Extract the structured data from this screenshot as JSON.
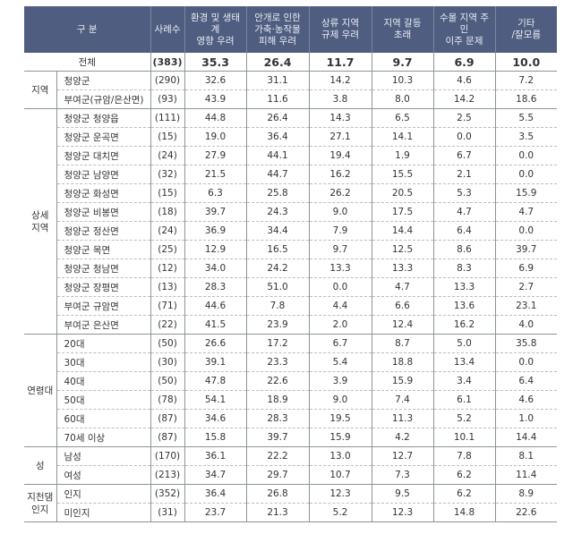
{
  "table": {
    "headers": [
      "구      분",
      "사례수",
      "환경 및 생태계\n영향 우려",
      "안개로 인한\n가축·농작물\n피해 우려",
      "상류 지역\n규제 우려",
      "지역 갈등\n초래",
      "수몰 지역 주민\n이주 문제",
      "기타\n/잘모름"
    ],
    "total": {
      "label": "전체",
      "n": "(383)",
      "values": [
        "35.3",
        "26.4",
        "11.7",
        "9.7",
        "6.9",
        "10.0"
      ]
    },
    "groups": [
      {
        "label": "지역",
        "rows": [
          {
            "label": "청양군",
            "n": "(290)",
            "values": [
              "32.6",
              "31.1",
              "14.2",
              "10.3",
              "4.6",
              "7.2"
            ]
          },
          {
            "label": "부여군(규암/은산면)",
            "n": "(93)",
            "values": [
              "43.9",
              "11.6",
              "3.8",
              "8.0",
              "14.2",
              "18.6"
            ]
          }
        ]
      },
      {
        "label": "상세\n지역",
        "rows": [
          {
            "label": "청양군 청양읍",
            "n": "(111)",
            "values": [
              "44.8",
              "26.4",
              "14.3",
              "6.5",
              "2.5",
              "5.5"
            ]
          },
          {
            "label": "청양군 운곡면",
            "n": "(15)",
            "values": [
              "19.0",
              "36.4",
              "27.1",
              "14.1",
              "0.0",
              "3.5"
            ]
          },
          {
            "label": "청양군 대치면",
            "n": "(24)",
            "values": [
              "27.9",
              "44.1",
              "19.4",
              "1.9",
              "6.7",
              "0.0"
            ]
          },
          {
            "label": "청양군 남양면",
            "n": "(32)",
            "values": [
              "21.5",
              "44.7",
              "16.2",
              "15.5",
              "2.1",
              "0.0"
            ]
          },
          {
            "label": "청양군 화성면",
            "n": "(15)",
            "values": [
              "6.3",
              "25.8",
              "26.2",
              "20.5",
              "5.3",
              "15.9"
            ]
          },
          {
            "label": "청양군 비봉면",
            "n": "(18)",
            "values": [
              "39.7",
              "24.3",
              "9.0",
              "17.5",
              "4.7",
              "4.7"
            ]
          },
          {
            "label": "청양군 정산면",
            "n": "(24)",
            "values": [
              "36.9",
              "34.4",
              "7.9",
              "14.4",
              "6.4",
              "0.0"
            ]
          },
          {
            "label": "청양군 목면",
            "n": "(25)",
            "values": [
              "12.9",
              "16.5",
              "9.7",
              "12.5",
              "8.6",
              "39.7"
            ]
          },
          {
            "label": "청양군 청남면",
            "n": "(12)",
            "values": [
              "34.0",
              "24.2",
              "13.3",
              "13.3",
              "8.3",
              "6.9"
            ]
          },
          {
            "label": "청양군 장평면",
            "n": "(13)",
            "values": [
              "28.3",
              "51.0",
              "0.0",
              "4.7",
              "13.3",
              "2.7"
            ]
          },
          {
            "label": "부여군 규암면",
            "n": "(71)",
            "values": [
              "44.6",
              "7.8",
              "4.4",
              "6.6",
              "13.6",
              "23.1"
            ]
          },
          {
            "label": "부여군 은산면",
            "n": "(22)",
            "values": [
              "41.5",
              "23.9",
              "2.0",
              "12.4",
              "16.2",
              "4.0"
            ]
          }
        ]
      },
      {
        "label": "연령대",
        "rows": [
          {
            "label": "20대",
            "n": "(50)",
            "values": [
              "26.6",
              "17.2",
              "6.7",
              "8.7",
              "5.0",
              "35.8"
            ]
          },
          {
            "label": "30대",
            "n": "(30)",
            "values": [
              "39.1",
              "23.3",
              "5.4",
              "18.8",
              "13.4",
              "0.0"
            ]
          },
          {
            "label": "40대",
            "n": "(50)",
            "values": [
              "47.8",
              "22.6",
              "3.9",
              "15.9",
              "3.4",
              "6.4"
            ]
          },
          {
            "label": "50대",
            "n": "(78)",
            "values": [
              "54.1",
              "18.9",
              "9.0",
              "7.4",
              "6.1",
              "4.6"
            ]
          },
          {
            "label": "60대",
            "n": "(87)",
            "values": [
              "34.6",
              "28.3",
              "19.5",
              "11.3",
              "5.2",
              "1.0"
            ]
          },
          {
            "label": "70세 이상",
            "n": "(87)",
            "values": [
              "15.8",
              "39.7",
              "15.9",
              "4.2",
              "10.1",
              "14.4"
            ]
          }
        ]
      },
      {
        "label": "성",
        "rows": [
          {
            "label": "남성",
            "n": "(170)",
            "values": [
              "36.1",
              "22.2",
              "13.0",
              "12.7",
              "7.8",
              "8.1"
            ]
          },
          {
            "label": "여성",
            "n": "(213)",
            "values": [
              "34.7",
              "29.7",
              "10.7",
              "7.3",
              "6.2",
              "11.4"
            ]
          }
        ]
      },
      {
        "label": "지천댐\n인지",
        "rows": [
          {
            "label": "인지",
            "n": "(352)",
            "values": [
              "36.4",
              "26.8",
              "12.3",
              "9.5",
              "6.2",
              "8.9"
            ]
          },
          {
            "label": "미인지",
            "n": "(31)",
            "values": [
              "23.7",
              "21.3",
              "5.2",
              "12.3",
              "14.8",
              "22.6"
            ]
          }
        ]
      }
    ]
  },
  "colors": {
    "header_bg": "#4f5d80",
    "header_text": "#e8ecf4",
    "grid": "#8a9690"
  }
}
